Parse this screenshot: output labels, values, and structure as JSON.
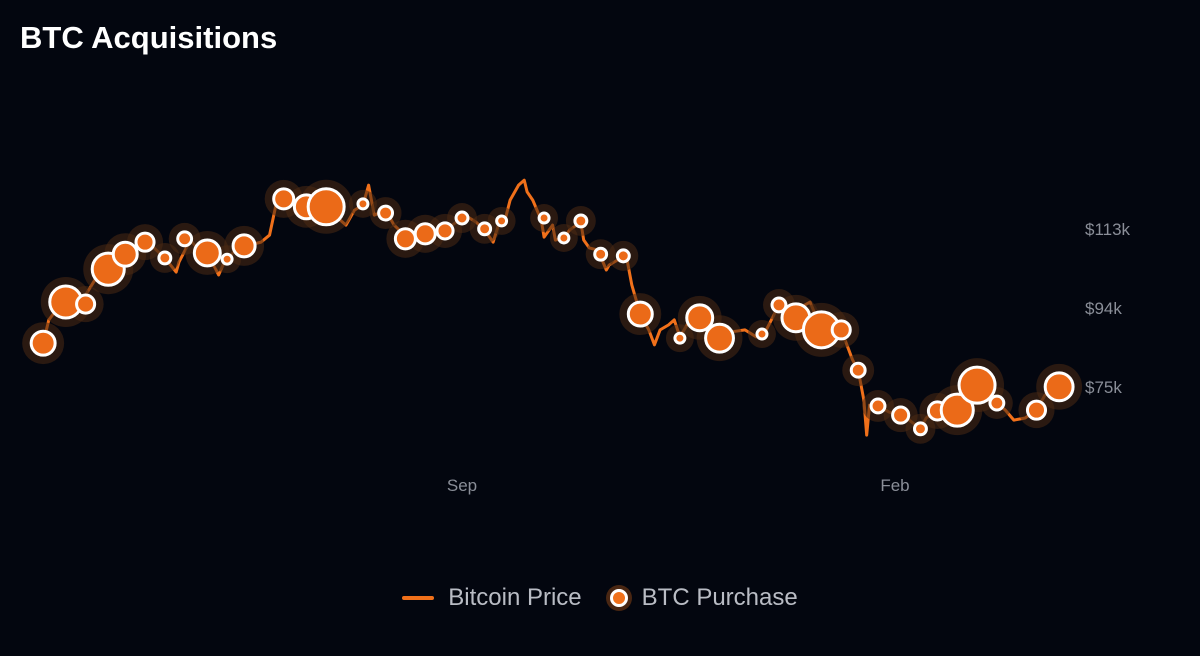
{
  "title": "BTC Acquisitions",
  "chart_data": {
    "type": "line+scatter",
    "title": "BTC Acquisitions",
    "x_unit": "days relative to Sep 1",
    "y_unit": "USD thousands",
    "ylim": [
      60,
      130
    ],
    "y_ticks": [
      {
        "value": 113,
        "label": "$113k"
      },
      {
        "value": 94,
        "label": "$94k"
      },
      {
        "value": 75,
        "label": "$75k"
      }
    ],
    "x_ticks": [
      {
        "value": 0,
        "label": "Sep"
      },
      {
        "value": 153,
        "label": "Feb"
      }
    ],
    "legend": {
      "placement": "bottom-center",
      "items": [
        "Bitcoin Price",
        "BTC Purchase"
      ]
    },
    "colors": {
      "line": "#f0701a",
      "point_fill": "#eb6a18",
      "point_stroke": "#ffffff",
      "halo": "#4a2a14",
      "background": "#03060f",
      "tick": "#8a8e98"
    },
    "series": [
      {
        "name": "Bitcoin Price",
        "type": "line",
        "points": [
          [
            -148,
            85.3
          ],
          [
            -146,
            90.9
          ],
          [
            -142,
            94.5
          ],
          [
            -139,
            95.7
          ],
          [
            -133,
            96.9
          ],
          [
            -128,
            102.4
          ],
          [
            -123,
            104.8
          ],
          [
            -117,
            107.2
          ],
          [
            -112,
            110.1
          ],
          [
            -108,
            107.7
          ],
          [
            -105,
            105.8
          ],
          [
            -101,
            102.4
          ],
          [
            -100,
            104.8
          ],
          [
            -96,
            110.1
          ],
          [
            -93,
            107.7
          ],
          [
            -89,
            105.8
          ],
          [
            -86,
            101.7
          ],
          [
            -84,
            104.8
          ],
          [
            -80,
            107.7
          ],
          [
            -75,
            108.9
          ],
          [
            -71,
            109.6
          ],
          [
            -68,
            111.3
          ],
          [
            -65,
            120.9
          ],
          [
            -61,
            119.7
          ],
          [
            -54,
            118.5
          ],
          [
            -47,
            117.3
          ],
          [
            -41,
            113.7
          ],
          [
            -38,
            117.3
          ],
          [
            -35,
            118.5
          ],
          [
            -33,
            123.3
          ],
          [
            -31,
            116.1
          ],
          [
            -27,
            117.3
          ],
          [
            -24,
            113.7
          ],
          [
            -20,
            111.1
          ],
          [
            -17,
            110.6
          ],
          [
            -11,
            111.8
          ],
          [
            -6,
            112.5
          ],
          [
            -2,
            114.4
          ],
          [
            1,
            116.1
          ],
          [
            5,
            114.4
          ],
          [
            8,
            112.5
          ],
          [
            11,
            109.6
          ],
          [
            13,
            114.0
          ],
          [
            15,
            114.4
          ],
          [
            17,
            119.7
          ],
          [
            20,
            123.3
          ],
          [
            22,
            124.5
          ],
          [
            23,
            121.7
          ],
          [
            25,
            119.7
          ],
          [
            28,
            114.9
          ],
          [
            29,
            110.8
          ],
          [
            32,
            113.7
          ],
          [
            33,
            110.1
          ],
          [
            36,
            110.6
          ],
          [
            38,
            112.5
          ],
          [
            42,
            114.4
          ],
          [
            43,
            110.1
          ],
          [
            45,
            108.2
          ],
          [
            48,
            107.7
          ],
          [
            51,
            102.9
          ],
          [
            52,
            104.1
          ],
          [
            55,
            105.3
          ],
          [
            58,
            106.5
          ],
          [
            60,
            99.3
          ],
          [
            63,
            92.3
          ],
          [
            66,
            88.5
          ],
          [
            68,
            84.9
          ],
          [
            70,
            88.5
          ],
          [
            73,
            89.7
          ],
          [
            75,
            90.9
          ],
          [
            77,
            86.8
          ],
          [
            81,
            91.4
          ],
          [
            84,
            91.4
          ],
          [
            88,
            88.5
          ],
          [
            91,
            86.5
          ],
          [
            95,
            88.0
          ],
          [
            100,
            88.5
          ],
          [
            104,
            86.8
          ],
          [
            107,
            87.8
          ],
          [
            112,
            94.5
          ],
          [
            118,
            93.3
          ],
          [
            123,
            95.2
          ],
          [
            127,
            88.5
          ],
          [
            134,
            88.5
          ],
          [
            136,
            84.9
          ],
          [
            138,
            81.3
          ],
          [
            140,
            78.8
          ],
          [
            142,
            71.6
          ],
          [
            143,
            63.2
          ],
          [
            144,
            70.4
          ],
          [
            147,
            70.2
          ],
          [
            151,
            68.7
          ],
          [
            155,
            68.0
          ],
          [
            158,
            66.8
          ],
          [
            162,
            64.7
          ],
          [
            164,
            67.3
          ],
          [
            167,
            68.7
          ],
          [
            171,
            70.4
          ],
          [
            175,
            69.2
          ],
          [
            180,
            72.8
          ],
          [
            182,
            75.2
          ],
          [
            185,
            71.6
          ],
          [
            189,
            70.9
          ],
          [
            192,
            69.2
          ],
          [
            195,
            66.8
          ],
          [
            199,
            67.3
          ],
          [
            203,
            69.2
          ],
          [
            206,
            72.8
          ],
          [
            211,
            74.8
          ]
        ]
      },
      {
        "name": "BTC Purchase",
        "type": "scatter",
        "size_unit": "relative purchase size (0-1)",
        "points": [
          [
            -148,
            85.3,
            0.57
          ],
          [
            -140,
            95.2,
            0.86
          ],
          [
            -133,
            94.7,
            0.36
          ],
          [
            -125,
            103.1,
            0.86
          ],
          [
            -119,
            106.7,
            0.57
          ],
          [
            -112,
            109.6,
            0.36
          ],
          [
            -105,
            105.8,
            0.14
          ],
          [
            -98,
            110.4,
            0.21
          ],
          [
            -90,
            107.0,
            0.64
          ],
          [
            -83,
            105.5,
            0.07
          ],
          [
            -77,
            108.7,
            0.5
          ],
          [
            -63,
            120.0,
            0.43
          ],
          [
            -55,
            118.1,
            0.57
          ],
          [
            -48,
            118.1,
            1.0
          ],
          [
            -35,
            118.8,
            0.07
          ],
          [
            -27,
            116.6,
            0.21
          ],
          [
            -20,
            110.4,
            0.43
          ],
          [
            -13,
            111.6,
            0.43
          ],
          [
            -6,
            112.3,
            0.29
          ],
          [
            0,
            115.4,
            0.14
          ],
          [
            8,
            112.8,
            0.14
          ],
          [
            14,
            114.7,
            0.07
          ],
          [
            29,
            115.4,
            0.07
          ],
          [
            36,
            110.6,
            0.07
          ],
          [
            42,
            114.7,
            0.14
          ],
          [
            49,
            106.7,
            0.14
          ],
          [
            57,
            106.3,
            0.14
          ],
          [
            63,
            92.3,
            0.57
          ],
          [
            77,
            86.5,
            0.07
          ],
          [
            84,
            91.4,
            0.64
          ],
          [
            91,
            86.5,
            0.71
          ],
          [
            106,
            87.5,
            0.07
          ],
          [
            112,
            94.5,
            0.21
          ],
          [
            118,
            91.4,
            0.71
          ],
          [
            127,
            88.5,
            1.0
          ],
          [
            134,
            88.5,
            0.36
          ],
          [
            140,
            78.8,
            0.21
          ],
          [
            147,
            70.2,
            0.21
          ],
          [
            155,
            68.0,
            0.29
          ],
          [
            162,
            64.7,
            0.14
          ],
          [
            168,
            69.0,
            0.36
          ],
          [
            175,
            69.2,
            0.86
          ],
          [
            182,
            75.2,
            1.0
          ],
          [
            189,
            70.9,
            0.21
          ],
          [
            203,
            69.2,
            0.36
          ],
          [
            211,
            74.8,
            0.71
          ]
        ]
      }
    ]
  }
}
